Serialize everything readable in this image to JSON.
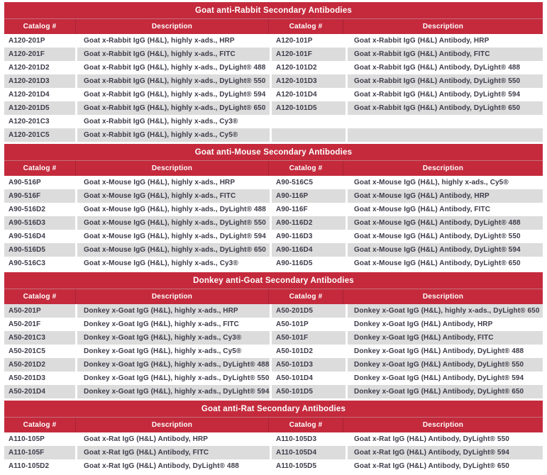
{
  "colors": {
    "header_red": "#C42A3C",
    "shaded_row_gray": "#DCDCDC",
    "body_text": "#3D3C4A",
    "header_text": "#FFFFFF"
  },
  "column_headers": [
    "Catalog #",
    "Description",
    "Catalog #",
    "Description"
  ],
  "sections": [
    {
      "title": "Goat anti-Rabbit Secondary Antibodies",
      "rows": [
        [
          "A120-201P",
          "Goat x-Rabbit IgG (H&L), highly x-ads., HRP",
          "A120-101P",
          "Goat x-Rabbit IgG (H&L) Antibody, HRP"
        ],
        [
          "A120-201F",
          "Goat x-Rabbit IgG (H&L), highly x-ads., FITC",
          "A120-101F",
          "Goat x-Rabbit IgG (H&L) Antibody, FITC"
        ],
        [
          "A120-201D2",
          "Goat x-Rabbit IgG (H&L), highly x-ads., DyLight® 488",
          "A120-101D2",
          "Goat x-Rabbit IgG (H&L) Antibody, DyLight® 488"
        ],
        [
          "A120-201D3",
          "Goat x-Rabbit IgG (H&L), highly x-ads., DyLight® 550",
          "A120-101D3",
          "Goat x-Rabbit IgG (H&L) Antibody, DyLight® 550"
        ],
        [
          "A120-201D4",
          "Goat x-Rabbit IgG (H&L), highly x-ads., DyLight® 594",
          "A120-101D4",
          "Goat x-Rabbit IgG (H&L) Antibody, DyLight® 594"
        ],
        [
          "A120-201D5",
          "Goat x-Rabbit IgG (H&L), highly x-ads., DyLight® 650",
          "A120-101D5",
          "Goat x-Rabbit IgG (H&L) Antibody, DyLight® 650"
        ],
        [
          "A120-201C3",
          "Goat x-Rabbit IgG (H&L), highly x-ads., Cy3®",
          "",
          ""
        ],
        [
          "A120-201C5",
          "Goat x-Rabbit IgG (H&L), highly x-ads., Cy5®",
          "",
          ""
        ]
      ]
    },
    {
      "title": "Goat anti-Mouse Secondary Antibodies",
      "rows": [
        [
          "A90-516P",
          "Goat x-Mouse IgG (H&L), highly x-ads., HRP",
          "A90-516C5",
          "Goat x-Mouse IgG (H&L), highly x-ads., Cy5®"
        ],
        [
          "A90-516F",
          "Goat x-Mouse IgG (H&L), highly x-ads., FITC",
          "A90-116P",
          "Goat x-Mouse IgG (H&L) Antibody, HRP"
        ],
        [
          "A90-516D2",
          "Goat x-Mouse IgG (H&L), highly x-ads., DyLight® 488",
          "A90-116F",
          "Goat x-Mouse IgG (H&L) Antibody, FITC"
        ],
        [
          "A90-516D3",
          "Goat x-Mouse IgG (H&L), highly x-ads., DyLight® 550",
          "A90-116D2",
          "Goat x-Mouse IgG (H&L) Antibody, DyLight® 488"
        ],
        [
          "A90-516D4",
          "Goat x-Mouse IgG (H&L), highly x-ads., DyLight® 594",
          "A90-116D3",
          "Goat x-Mouse IgG (H&L) Antibody, DyLight® 550"
        ],
        [
          "A90-516D5",
          "Goat x-Mouse IgG (H&L), highly x-ads., DyLight® 650",
          "A90-116D4",
          "Goat x-Mouse IgG (H&L) Antibody, DyLight® 594"
        ],
        [
          "A90-516C3",
          "Goat x-Mouse IgG (H&L), highly x-ads., Cy3®",
          "A90-116D5",
          "Goat x-Mouse IgG (H&L) Antibody, DyLight® 650"
        ]
      ]
    },
    {
      "title": "Donkey anti-Goat Secondary Antibodies",
      "rows": [
        [
          "A50-201P",
          "Donkey x-Goat IgG (H&L), highly x-ads., HRP",
          "A50-201D5",
          "Donkey x-Goat IgG (H&L), highly x-ads., DyLight® 650"
        ],
        [
          "A50-201F",
          "Donkey x-Goat IgG (H&L), highly x-ads., FITC",
          "A50-101P",
          "Donkey x-Goat IgG (H&L) Antibody, HRP"
        ],
        [
          "A50-201C3",
          "Donkey x-Goat IgG (H&L), highly x-ads., Cy3®",
          "A50-101F",
          "Donkey x-Goat IgG (H&L) Antibody, FITC"
        ],
        [
          "A50-201C5",
          "Donkey x-Goat IgG (H&L), highly x-ads., Cy5®",
          "A50-101D2",
          "Donkey x-Goat IgG (H&L) Antibody, DyLight® 488"
        ],
        [
          "A50-201D2",
          "Donkey x-Goat IgG (H&L), highly x-ads., DyLight® 488",
          "A50-101D3",
          "Donkey x-Goat IgG (H&L) Antibody, DyLight® 550"
        ],
        [
          "A50-201D3",
          "Donkey x-Goat IgG (H&L), highly x-ads., DyLight® 550",
          "A50-101D4",
          "Donkey x-Goat IgG (H&L) Antibody, DyLight® 594"
        ],
        [
          "A50-201D4",
          "Donkey x-Goat IgG (H&L), highly x-ads., DyLight® 594",
          "A50-101D5",
          "Donkey x-Goat IgG (H&L) Antibody, DyLight® 650"
        ]
      ]
    },
    {
      "title": "Goat anti-Rat Secondary Antibodies",
      "rows": [
        [
          "A110-105P",
          "Goat x-Rat IgG (H&L) Antibody, HRP",
          "A110-105D3",
          "Goat x-Rat IgG (H&L) Antibody, DyLight® 550"
        ],
        [
          "A110-105F",
          "Goat x-Rat IgG (H&L) Antibody, FITC",
          "A110-105D4",
          "Goat x-Rat IgG (H&L) Antibody, DyLight® 594"
        ],
        [
          "A110-105D2",
          "Goat x-Rat IgG (H&L) Antibody, DyLight® 488",
          "A110-105D5",
          "Goat x-Rat IgG (H&L) Antibody, DyLight® 650"
        ]
      ]
    }
  ]
}
